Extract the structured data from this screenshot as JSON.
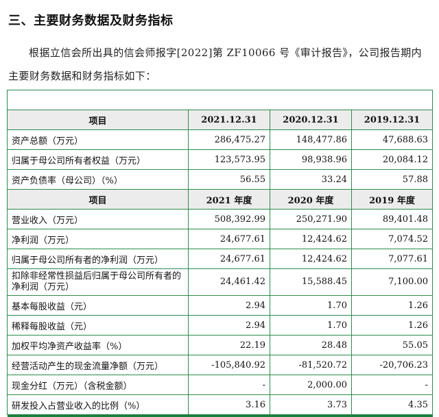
{
  "heading": "三、主要财务数据及财务指标",
  "intro": "根据立信会所出具的信会师报字[2022]第 ZF10066 号《审计报告》，公司报告期内主要财务数据和财务指标如下：",
  "table": {
    "header1": [
      "项目",
      "2021.12.31",
      "2020.12.31",
      "2019.12.31"
    ],
    "rows1": [
      {
        "label": "资产总额（万元）",
        "v": [
          "286,475.27",
          "148,477.86",
          "47,688.63"
        ]
      },
      {
        "label": "归属于母公司所有者权益（万元）",
        "v": [
          "123,573.95",
          "98,938.96",
          "20,084.12"
        ]
      },
      {
        "label": "资产负债率（母公司）（%）",
        "v": [
          "56.55",
          "33.24",
          "57.88"
        ]
      }
    ],
    "header2": [
      "项目",
      "2021 年度",
      "2020 年度",
      "2019 年度"
    ],
    "rows2": [
      {
        "label": "营业收入（万元）",
        "v": [
          "508,392.99",
          "250,271.90",
          "89,401.48"
        ]
      },
      {
        "label": "净利润（万元）",
        "v": [
          "24,677.61",
          "12,424.62",
          "7,074.52"
        ]
      },
      {
        "label": "归属于母公司所有者的净利润（万元）",
        "v": [
          "24,677.61",
          "12,424.62",
          "7,077.61"
        ]
      },
      {
        "label": "扣除非经常性损益后归属于母公司所有者的净利润（万元）",
        "v": [
          "24,461.42",
          "15,588.45",
          "7,100.00"
        ]
      },
      {
        "label": "基本每股收益（元）",
        "v": [
          "2.94",
          "1.70",
          "1.26"
        ]
      },
      {
        "label": "稀释每股收益（元）",
        "v": [
          "2.94",
          "1.70",
          "1.26"
        ]
      },
      {
        "label": "加权平均净资产收益率（%）",
        "v": [
          "22.19",
          "28.48",
          "55.05"
        ]
      },
      {
        "label": "经营活动产生的现金流量净额（万元）",
        "v": [
          "-105,840.92",
          "-81,520.72",
          "-20,706.23"
        ]
      },
      {
        "label": "现金分红（万元）（含税金额）",
        "v": [
          "-",
          "2,000.00",
          "-"
        ]
      },
      {
        "label": "研发投入占营业收入的比例（%）",
        "v": [
          "3.16",
          "3.73",
          "4.35"
        ]
      }
    ]
  }
}
